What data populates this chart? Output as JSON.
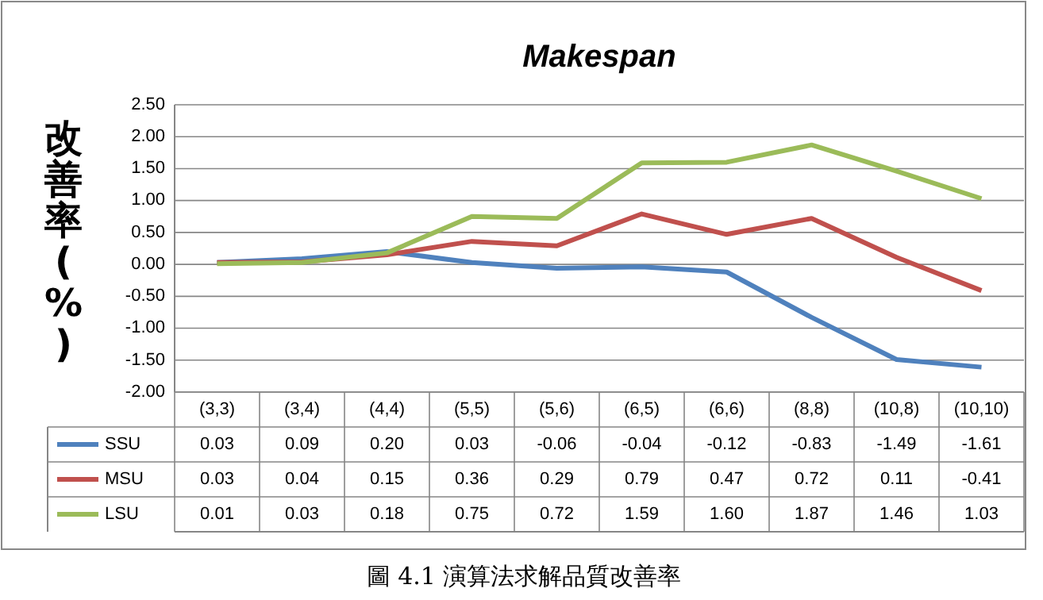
{
  "chart_data": {
    "type": "line",
    "title": "Makespan",
    "ylabel": "改善率(%)",
    "categories": [
      "(3,3)",
      "(3,4)",
      "(4,4)",
      "(5,5)",
      "(5,6)",
      "(6,5)",
      "(6,6)",
      "(8,8)",
      "(10,8)",
      "(10,10)"
    ],
    "series": [
      {
        "name": "SSU",
        "color": "#4f81bd",
        "values": [
          0.03,
          0.09,
          0.2,
          0.03,
          -0.06,
          -0.04,
          -0.12,
          -0.83,
          -1.49,
          -1.61
        ],
        "value_labels": [
          "0.03",
          "0.09",
          "0.20",
          "0.03",
          "-0.06",
          "-0.04",
          "-0.12",
          "-0.83",
          "-1.49",
          "-1.61"
        ]
      },
      {
        "name": "MSU",
        "color": "#c0504d",
        "values": [
          0.03,
          0.04,
          0.15,
          0.36,
          0.29,
          0.79,
          0.47,
          0.72,
          0.11,
          -0.41
        ],
        "value_labels": [
          "0.03",
          "0.04",
          "0.15",
          "0.36",
          "0.29",
          "0.79",
          "0.47",
          "0.72",
          "0.11",
          "-0.41"
        ]
      },
      {
        "name": "LSU",
        "color": "#9bbb59",
        "values": [
          0.01,
          0.03,
          0.18,
          0.75,
          0.72,
          1.59,
          1.6,
          1.87,
          1.46,
          1.03
        ],
        "value_labels": [
          "0.01",
          "0.03",
          "0.18",
          "0.75",
          "0.72",
          "1.59",
          "1.60",
          "1.87",
          "1.46",
          "1.03"
        ]
      }
    ],
    "ylim": [
      -2,
      2.5
    ],
    "yticks": [
      {
        "value": -2,
        "label": "-2.00"
      },
      {
        "value": -1.5,
        "label": "-1.50"
      },
      {
        "value": -1,
        "label": "-1.00"
      },
      {
        "value": -0.5,
        "label": "-0.50"
      },
      {
        "value": 0,
        "label": "0.00"
      },
      {
        "value": 0.5,
        "label": "0.50"
      },
      {
        "value": 1,
        "label": "1.00"
      },
      {
        "value": 1.5,
        "label": "1.50"
      },
      {
        "value": 2,
        "label": "2.00"
      },
      {
        "value": 2.5,
        "label": "2.50"
      }
    ],
    "grid": "y",
    "legend": "bottom",
    "line_style": "solid",
    "annotations": [
      "圖 4.1 演算法求解品質改善率"
    ]
  }
}
